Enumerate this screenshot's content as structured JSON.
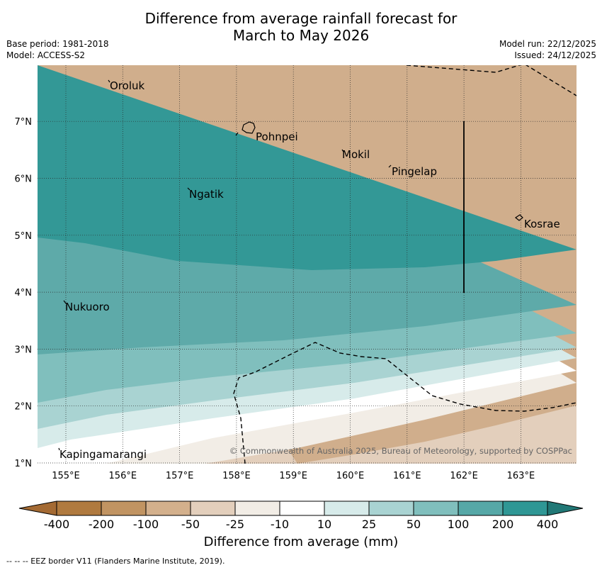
{
  "title": {
    "line1": "Difference from average rainfall forecast for",
    "line2": "March to May 2026"
  },
  "meta": {
    "base_period": "Base period: 1981-2018",
    "model": "Model: ACCESS-S2",
    "model_run": "Model run: 22/12/2025",
    "issued": "Issued: 24/12/2025"
  },
  "axes": {
    "longitudes": [
      "155°E",
      "156°E",
      "157°E",
      "158°E",
      "159°E",
      "160°E",
      "161°E",
      "162°E",
      "163°E"
    ],
    "latitudes": [
      "1°N",
      "2°N",
      "3°N",
      "4°N",
      "5°N",
      "6°N",
      "7°N"
    ]
  },
  "places": {
    "oroluk": "Oroluk",
    "pohnpei": "Pohnpei",
    "mokil": "Mokil",
    "pingelap": "Pingelap",
    "ngatik": "Ngatik",
    "kosrae": "Kosrae",
    "nukuoro": "Nukuoro",
    "kapingamarangi": "Kapingamarangi"
  },
  "copyright": "© Commonwealth of Australia 2025, Bureau of Meteorology, supported by COSPPac",
  "colorbar": {
    "labels": [
      "-400",
      "-200",
      "-100",
      "-50",
      "-25",
      "-10",
      "10",
      "25",
      "50",
      "100",
      "200",
      "400"
    ],
    "colors": [
      "#a46a33",
      "#b07a3f",
      "#c19462",
      "#d3b08c",
      "#e3cfbc",
      "#f2ede6",
      "#ffffff",
      "#d7ebea",
      "#a9d3d2",
      "#80bfbd",
      "#56a8a7",
      "#2f9795",
      "#217876"
    ],
    "title": "Difference from average (mm)"
  },
  "footnote": "--  --  -- EEZ border V11 (Flanders Marine Institute, 2019)."
}
